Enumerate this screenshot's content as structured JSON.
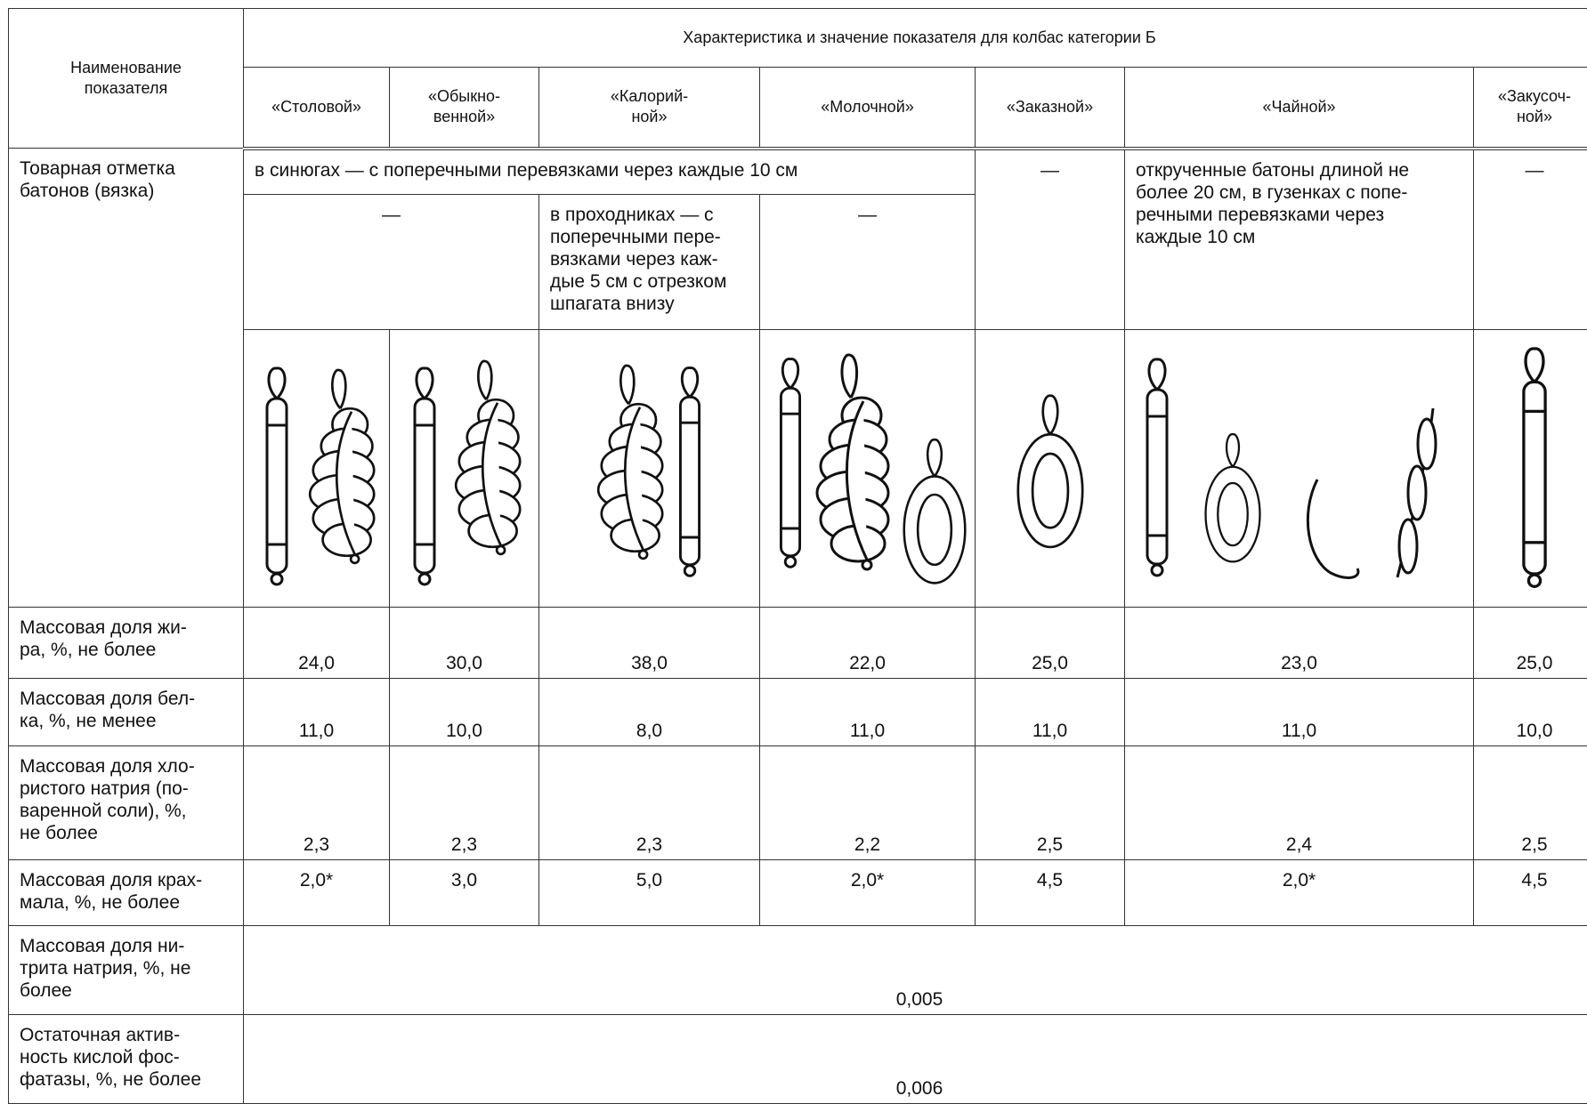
{
  "header": {
    "name_column": "Наименование\nпоказателя",
    "group_title": "Характеристика и значение показателя для колбас категории Б",
    "columns": [
      "«Столовой»",
      "«Обыкно-\nвенной»",
      "«Калорий-\nной»",
      "«Молочной»",
      "«Заказной»",
      "«Чайной»",
      "«Закусоч-\nной»"
    ]
  },
  "marking": {
    "label": "Товарная отметка\nбатонов (вязка)",
    "common": "в синюгах — с поперечными перевязками через каждые 10 см",
    "zakaznoy": "—",
    "chaynoy": "открученные батоны длиной не\nболее 20 см, в гузенках с попе-\nречными перевязками через\nкаждые 10 см",
    "zakusochnoy": "—",
    "stolovoy_obyknovennoy": "—",
    "kaloriynoy": "в проходниках — с\nпоперечными пере-\nвязками через каж-\nдые 5 см с отрезком\nшпагата внизу",
    "molochnoy": "—"
  },
  "rows": [
    {
      "label": "Массовая доля жи-\nра, %, не более",
      "values": [
        "24,0",
        "30,0",
        "38,0",
        "22,0",
        "25,0",
        "23,0",
        "25,0"
      ]
    },
    {
      "label": "Массовая доля бел-\nка, %, не менее",
      "values": [
        "11,0",
        "10,0",
        "8,0",
        "11,0",
        "11,0",
        "11,0",
        "10,0"
      ]
    },
    {
      "label": "Массовая доля хло-\nристого натрия (по-\nваренной соли), %,\nне более",
      "values": [
        "2,3",
        "2,3",
        "2,3",
        "2,2",
        "2,5",
        "2,4",
        "2,5"
      ]
    },
    {
      "label": "Массовая доля крах-\nмала, %, не более",
      "values": [
        "2,0*",
        "3,0",
        "5,0",
        "2,0*",
        "4,5",
        "2,0*",
        "4,5"
      ]
    }
  ],
  "common_rows": [
    {
      "label": "Массовая доля ни-\nтрита натрия, %, не\nболее",
      "value": "0,005"
    },
    {
      "label": "Остаточная актив-\nность кислой фос-\nфатазы, %, не более",
      "value": "0,006"
    }
  ]
}
